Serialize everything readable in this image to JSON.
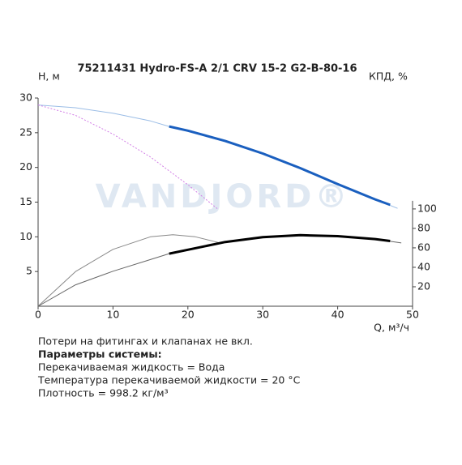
{
  "chart_data": {
    "type": "line",
    "title": "75211431 Hydro-FS-A 2/1 CRV 15-2 G2-B-80-16",
    "ylabel": "H, м",
    "y2label": "КПД, %",
    "xlabel": "Q, м³/ч",
    "watermark": "VANDJORD®",
    "xlim": [
      0,
      50
    ],
    "xticks": [
      0,
      10,
      20,
      30,
      40,
      50
    ],
    "ylim": [
      0,
      30
    ],
    "yticks": [
      5,
      10,
      15,
      20,
      25,
      30
    ],
    "y2lim": [
      0,
      214
    ],
    "y2ticks": [
      20,
      40,
      60,
      80,
      100
    ],
    "series": [
      {
        "color": "#9bbde6",
        "width": 1,
        "x": [
          0,
          5,
          10,
          15,
          17.5,
          20,
          25,
          30,
          35,
          40,
          45,
          48
        ],
        "values": [
          29,
          28.6,
          27.8,
          26.7,
          25.9,
          25.3,
          23.8,
          22,
          19.9,
          17.6,
          15.4,
          14.1
        ]
      },
      {
        "color": "#1a5fbf",
        "width": 3,
        "x": [
          17.5,
          20,
          25,
          30,
          35,
          40,
          45,
          47
        ],
        "values": [
          25.9,
          25.3,
          23.8,
          22,
          19.9,
          17.6,
          15.4,
          14.6
        ]
      },
      {
        "color": "#d27ee6",
        "width": 1,
        "dash": true,
        "x": [
          0,
          5,
          10,
          15,
          20,
          24
        ],
        "values": [
          29,
          27.5,
          24.8,
          21.5,
          17.5,
          14
        ]
      },
      {
        "color": "#888888",
        "width": 1,
        "x": [
          0,
          5,
          10,
          15,
          18,
          21,
          24
        ],
        "values": [
          0,
          5,
          8.2,
          10,
          10.3,
          10,
          9.2
        ]
      },
      {
        "color": "#666666",
        "width": 1,
        "axis": "y2",
        "x": [
          0,
          5,
          10,
          15,
          17.5,
          20,
          25,
          30,
          35,
          40,
          45,
          48.5
        ],
        "values": [
          0,
          22,
          36,
          48,
          54,
          58,
          66,
          71,
          73,
          72,
          69,
          65
        ]
      },
      {
        "color": "#000000",
        "width": 3,
        "axis": "y2",
        "x": [
          17.5,
          20,
          25,
          30,
          35,
          40,
          45,
          47
        ],
        "values": [
          54,
          58,
          66,
          71,
          73,
          72,
          69,
          67
        ]
      }
    ],
    "notes": [
      {
        "text": "Потери на фитингах и клапанах не вкл."
      },
      {
        "text": "Параметры системы:",
        "bold": true
      },
      {
        "text": "Перекачиваемая жидкость = Вода"
      },
      {
        "text": "Температура перекачиваемой жидкости = 20 °C"
      },
      {
        "text": "Плотность = 998.2 кг/м³"
      }
    ]
  }
}
